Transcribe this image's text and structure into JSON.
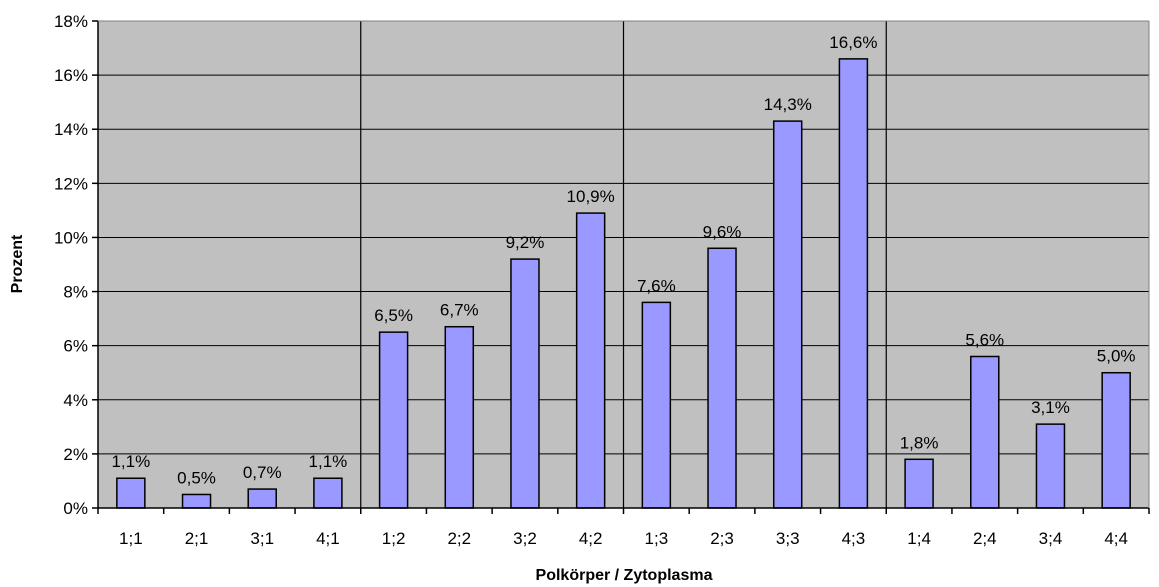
{
  "chart_data": {
    "type": "bar",
    "categories": [
      "1;1",
      "2;1",
      "3;1",
      "4;1",
      "1;2",
      "2;2",
      "3;2",
      "4;2",
      "1;3",
      "2;3",
      "3;3",
      "4;3",
      "1;4",
      "2;4",
      "3;4",
      "4;4"
    ],
    "values": [
      1.1,
      0.5,
      0.7,
      1.1,
      6.5,
      6.7,
      9.2,
      10.9,
      7.6,
      9.6,
      14.3,
      16.6,
      1.8,
      5.6,
      3.1,
      5.0
    ],
    "data_labels": [
      "1,1%",
      "0,5%",
      "0,7%",
      "1,1%",
      "6,5%",
      "6,7%",
      "9,2%",
      "10,9%",
      "7,6%",
      "9,6%",
      "14,3%",
      "16,6%",
      "1,8%",
      "5,6%",
      "3,1%",
      "5,0%"
    ],
    "xlabel": "Polkörper / Zytoplasma",
    "ylabel": "Prozent",
    "ylim": [
      0,
      18
    ],
    "y_ticks": [
      0,
      2,
      4,
      6,
      8,
      10,
      12,
      14,
      16,
      18
    ],
    "y_tick_labels": [
      "0%",
      "2%",
      "4%",
      "6%",
      "8%",
      "10%",
      "12%",
      "14%",
      "16%",
      "18%"
    ],
    "group_separators_after_index": [
      3,
      7,
      11
    ],
    "grid": true,
    "colors": {
      "plot_background": "#c0c0c0",
      "bar_fill": "#9999ff",
      "bar_stroke": "#000000",
      "gridline": "#000000"
    }
  }
}
